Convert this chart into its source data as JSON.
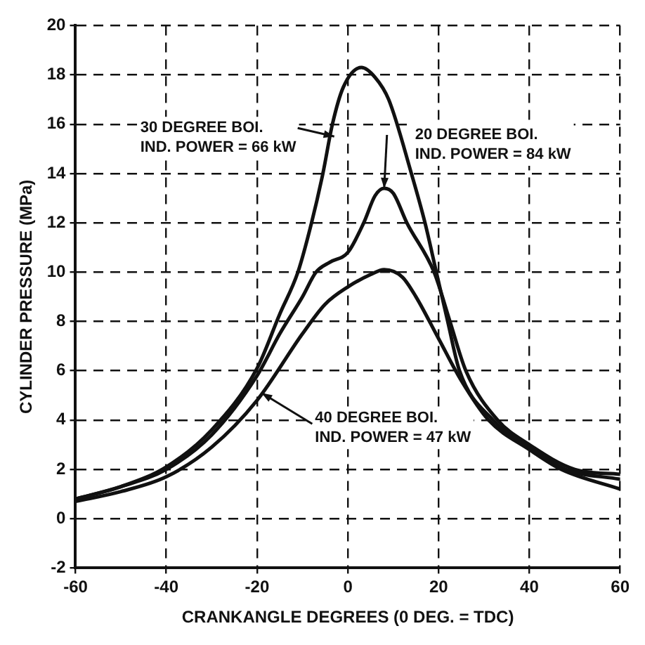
{
  "chart_data": {
    "type": "line",
    "xlabel": "CRANKANGLE DEGREES (0 DEG. = TDC)",
    "ylabel": "CYLINDER PRESSURE (MPa)",
    "xlim": [
      -60,
      60
    ],
    "xticks": [
      -60,
      -40,
      -20,
      0,
      20,
      40,
      60
    ],
    "ylim": [
      -2,
      20
    ],
    "yticks": [
      -2,
      0,
      2,
      4,
      6,
      8,
      10,
      12,
      14,
      16,
      18,
      20
    ],
    "grid": true,
    "legend": false,
    "marker": "none",
    "line_style": "solid",
    "series": [
      {
        "color": "#111111",
        "x": [
          -60,
          -50,
          -40,
          -30,
          -20,
          -15,
          -11,
          -8,
          -5.5,
          -3.4,
          -1,
          3,
          6,
          9,
          14,
          17,
          19.5,
          22,
          24.6,
          32,
          40,
          48,
          60
        ],
        "values": [
          0.8,
          1.3,
          2.1,
          3.6,
          6.1,
          8.3,
          10,
          12,
          14,
          16,
          17.5,
          18.3,
          17.9,
          17,
          14,
          12,
          10,
          8,
          6,
          4,
          2.9,
          2,
          1.6
        ]
      },
      {
        "color": "#111111",
        "x": [
          -60,
          -50,
          -40,
          -30,
          -20,
          -15,
          -10,
          -7,
          -4,
          0,
          3.5,
          6,
          8,
          10,
          13,
          19,
          22.5,
          26,
          33,
          40,
          50,
          60
        ],
        "values": [
          0.8,
          1.3,
          2,
          3.4,
          5.8,
          7.5,
          9,
          10,
          10.4,
          10.8,
          12,
          13.1,
          13.4,
          13.2,
          12,
          10,
          8,
          6,
          4,
          3,
          2,
          1.8
        ]
      },
      {
        "color": "#111111",
        "x": [
          -60,
          -50,
          -40,
          -30,
          -20,
          -10,
          -5,
          0,
          5,
          8,
          12,
          15,
          20,
          25,
          31,
          40,
          47,
          60
        ],
        "values": [
          0.7,
          1.1,
          1.7,
          2.9,
          4.8,
          7.5,
          8.7,
          9.4,
          9.9,
          10.1,
          9.8,
          9,
          7.3,
          5.6,
          4,
          2.8,
          2,
          1.2
        ]
      }
    ],
    "annotations": [
      {
        "text": "30 DEGREE BOI.\nIND. POWER = 66 kW",
        "x": -3,
        "y": 15.5
      },
      {
        "text": "20 DEGREE BOI.\nIND. POWER = 84 kW",
        "x": 8,
        "y": 13.4
      },
      {
        "text": "40 DEGREE BOI.\nIND. POWER = 47 kW",
        "x": -19,
        "y": 5.1
      }
    ]
  }
}
